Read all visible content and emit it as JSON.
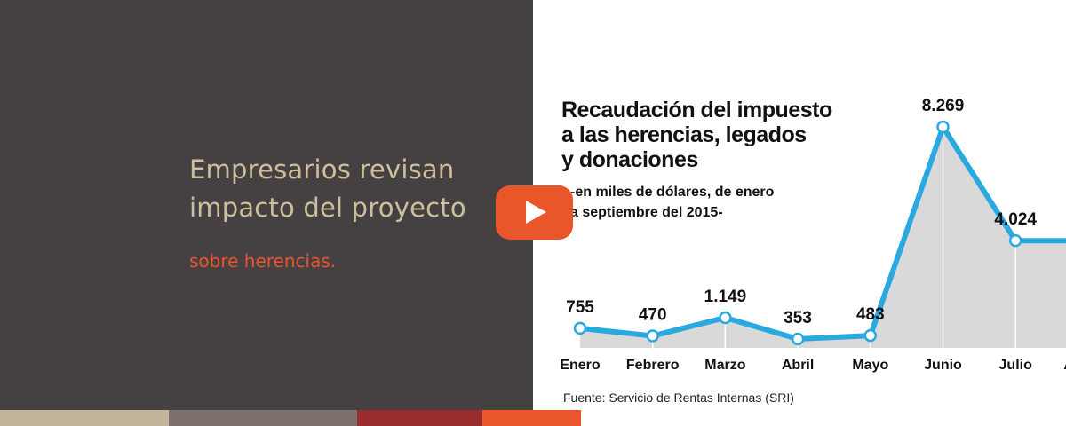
{
  "banner": {
    "headline_line1": "Empresarios revisan",
    "headline_line2": "impacto del proyecto",
    "subline": "sobre herencias."
  },
  "colors": {
    "panel_bg": "#454041",
    "headline": "#cdbf9c",
    "accent": "#e8562a",
    "line": "#29a9e0",
    "area": "#d9d9d9"
  },
  "bottom_bar": [
    {
      "color": "#c2b59b"
    },
    {
      "color": "#7e706d"
    },
    {
      "color": "#9a2c2e"
    },
    {
      "color": "#e8562a"
    }
  ],
  "chart_data": {
    "type": "line",
    "title_lines": [
      "Recaudación del impuesto",
      "a las herencias, legados",
      "y donaciones"
    ],
    "subtitle_lines": [
      "-en miles de dólares, de enero",
      "a septiembre del 2015-"
    ],
    "source": "Fuente: Servicio de Rentas Internas (SRI)",
    "categories": [
      "Enero",
      "Febrero",
      "Marzo",
      "Abril",
      "Mayo",
      "Junio",
      "Julio",
      "Agosto"
    ],
    "series": [
      {
        "values": [
          755,
          470,
          1149,
          353,
          483,
          8269,
          4024,
          4024
        ]
      }
    ],
    "data_labels": [
      "755",
      "470",
      "1.149",
      "353",
      "483",
      "8.269",
      "4.024",
      ""
    ],
    "area_fill": true,
    "grid": false,
    "legend": "none"
  }
}
